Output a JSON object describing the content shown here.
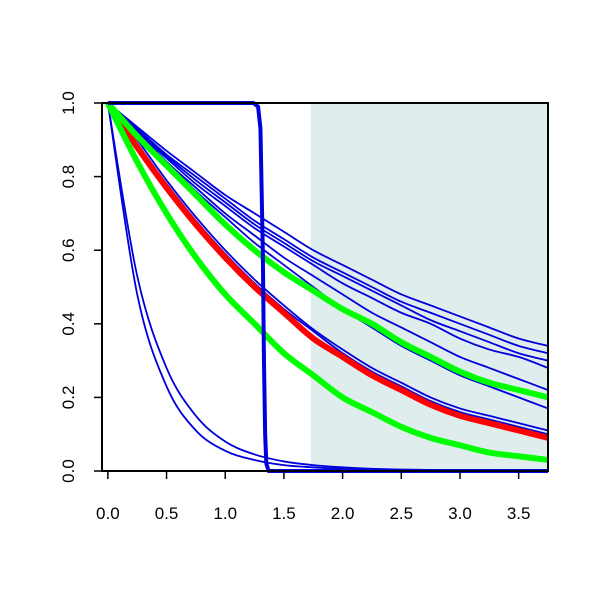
{
  "chart_data": {
    "type": "line",
    "title": "",
    "xlabel": "",
    "ylabel": "",
    "xlim": [
      -0.05,
      3.75
    ],
    "ylim": [
      0.0,
      1.0
    ],
    "grid": false,
    "legend": "none",
    "x_ticks": [
      "0.0",
      "0.5",
      "1.0",
      "1.5",
      "2.0",
      "2.5",
      "3.0",
      "3.5"
    ],
    "y_ticks": [
      "0.0",
      "0.2",
      "0.4",
      "0.6",
      "0.8",
      "1.0"
    ],
    "shaded_region": {
      "x_from": 1.73,
      "x_to": 3.75,
      "color": "#e0eded"
    },
    "x": [
      0,
      0.25,
      0.5,
      0.75,
      1.0,
      1.25,
      1.5,
      1.75,
      2.0,
      2.25,
      2.5,
      2.75,
      3.0,
      3.25,
      3.5,
      3.75
    ],
    "series": [
      {
        "color": "#ff0000",
        "weight": "bold",
        "values": [
          1.0,
          0.88,
          0.77,
          0.67,
          0.58,
          0.5,
          0.43,
          0.36,
          0.31,
          0.26,
          0.22,
          0.18,
          0.15,
          0.13,
          0.11,
          0.09
        ]
      },
      {
        "color": "#00ff00",
        "weight": "bold",
        "values": [
          1.0,
          0.91,
          0.83,
          0.75,
          0.67,
          0.6,
          0.54,
          0.49,
          0.44,
          0.4,
          0.35,
          0.31,
          0.27,
          0.24,
          0.22,
          0.2
        ]
      },
      {
        "color": "#00ff00",
        "weight": "bold",
        "values": [
          1.0,
          0.84,
          0.7,
          0.58,
          0.48,
          0.4,
          0.32,
          0.26,
          0.2,
          0.16,
          0.12,
          0.09,
          0.07,
          0.05,
          0.04,
          0.03
        ]
      },
      {
        "color": "#0000dd",
        "weight": "normal",
        "values": [
          1.0,
          0.935,
          0.87,
          0.81,
          0.75,
          0.7,
          0.65,
          0.6,
          0.56,
          0.52,
          0.48,
          0.45,
          0.42,
          0.39,
          0.36,
          0.34
        ]
      },
      {
        "color": "#0000dd",
        "weight": "normal",
        "values": [
          1.0,
          0.93,
          0.86,
          0.8,
          0.74,
          0.68,
          0.63,
          0.58,
          0.54,
          0.5,
          0.46,
          0.43,
          0.4,
          0.37,
          0.34,
          0.32
        ]
      },
      {
        "color": "#0000dd",
        "weight": "normal",
        "values": [
          1.0,
          0.925,
          0.855,
          0.79,
          0.73,
          0.67,
          0.62,
          0.57,
          0.53,
          0.49,
          0.45,
          0.41,
          0.38,
          0.35,
          0.32,
          0.3
        ]
      },
      {
        "color": "#0000dd",
        "weight": "normal",
        "values": [
          1.0,
          0.92,
          0.85,
          0.78,
          0.72,
          0.66,
          0.61,
          0.56,
          0.51,
          0.47,
          0.43,
          0.4,
          0.36,
          0.33,
          0.31,
          0.28
        ]
      },
      {
        "color": "#0000dd",
        "weight": "normal",
        "values": [
          1.0,
          0.92,
          0.84,
          0.77,
          0.7,
          0.64,
          0.58,
          0.53,
          0.48,
          0.43,
          0.39,
          0.35,
          0.31,
          0.28,
          0.25,
          0.22
        ]
      },
      {
        "color": "#0000dd",
        "weight": "normal",
        "values": [
          1.0,
          0.92,
          0.84,
          0.76,
          0.69,
          0.62,
          0.56,
          0.5,
          0.44,
          0.39,
          0.34,
          0.3,
          0.26,
          0.23,
          0.2,
          0.17
        ]
      },
      {
        "color": "#0000dd",
        "weight": "normal",
        "values": [
          1.0,
          0.89,
          0.78,
          0.68,
          0.59,
          0.51,
          0.44,
          0.38,
          0.32,
          0.27,
          0.23,
          0.19,
          0.16,
          0.14,
          0.12,
          0.1
        ]
      },
      {
        "color": "#0000dd",
        "weight": "normal",
        "values": [
          1.0,
          0.9,
          0.79,
          0.69,
          0.6,
          0.52,
          0.45,
          0.385,
          0.33,
          0.28,
          0.24,
          0.2,
          0.17,
          0.15,
          0.13,
          0.11
        ]
      },
      {
        "color": "#0000dd",
        "weight": "normal",
        "values": [
          1.0,
          0.48,
          0.23,
          0.11,
          0.055,
          0.03,
          0.016,
          0.01,
          0.006,
          0.004,
          0.003,
          0.002,
          0.001,
          0.001,
          0.0005,
          0.0005
        ]
      },
      {
        "color": "#0000dd",
        "weight": "normal",
        "values": [
          1.0,
          0.53,
          0.28,
          0.15,
          0.08,
          0.045,
          0.026,
          0.016,
          0.01,
          0.006,
          0.004,
          0.003,
          0.002,
          0.0015,
          0.001,
          0.0008
        ]
      }
    ],
    "step_series": [
      {
        "color": "#0000dd",
        "weight": "bold",
        "x": [
          0,
          1.24,
          1.28,
          1.3,
          1.32,
          1.33,
          1.34,
          1.35,
          1.37,
          3.75
        ],
        "values": [
          1.0,
          1.0,
          0.99,
          0.93,
          0.6,
          0.3,
          0.1,
          0.02,
          0.0,
          0.0
        ]
      }
    ]
  }
}
